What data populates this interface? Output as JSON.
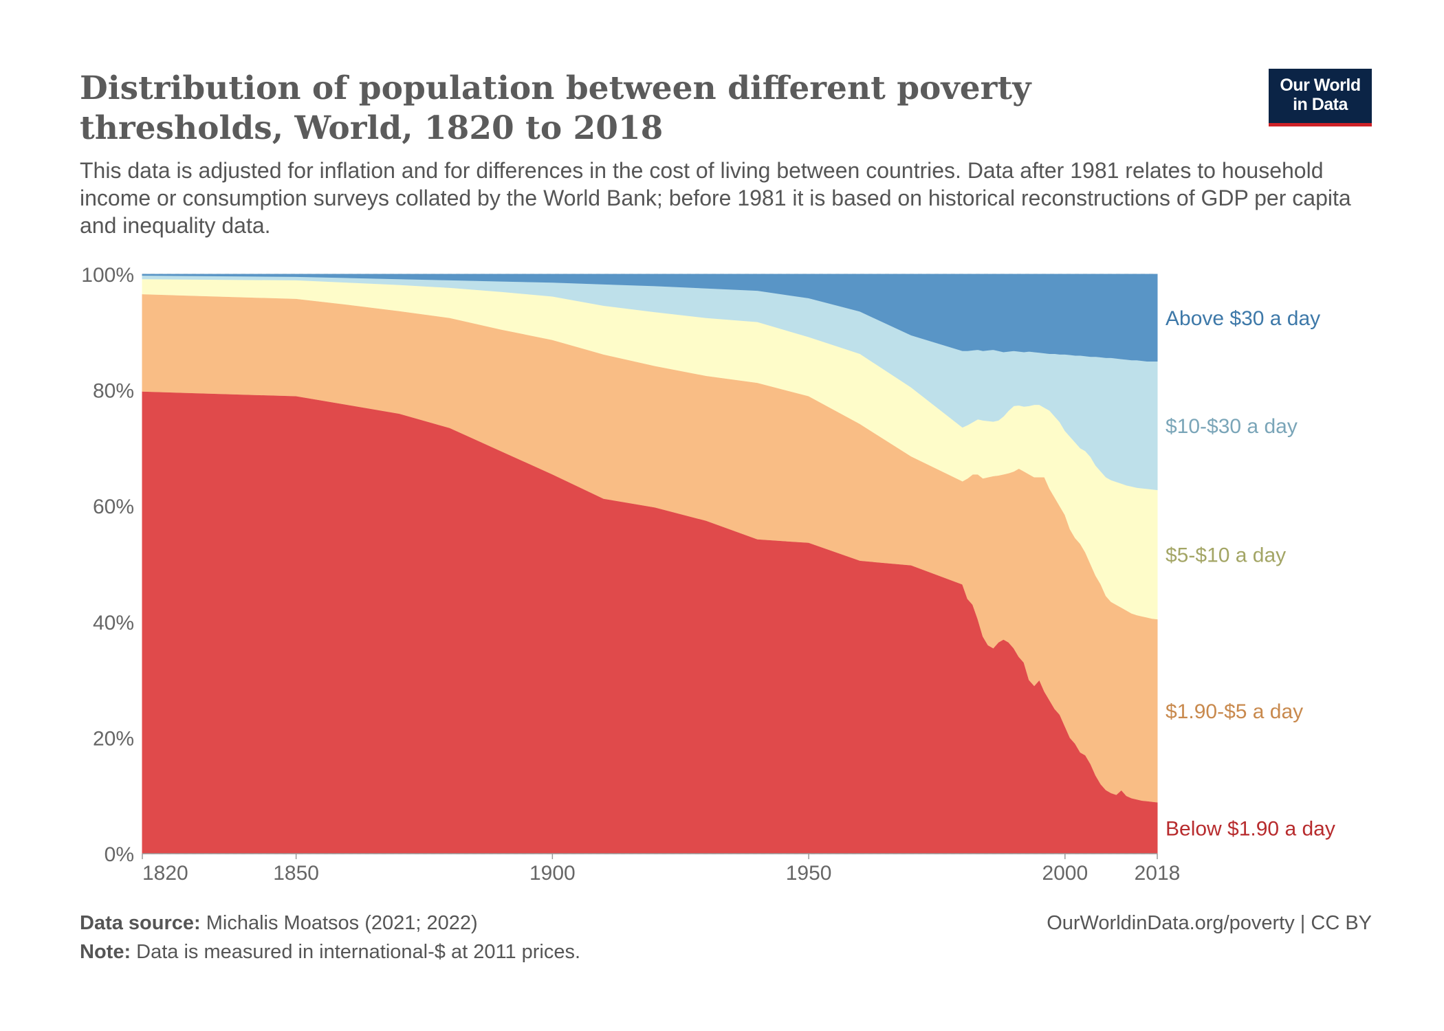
{
  "header": {
    "title": "Distribution of population between different poverty thresholds, World, 1820 to 2018",
    "subtitle": "This data is adjusted for inflation and for differences in the cost of living between countries. Data after 1981 relates to household income or consumption surveys collated by the World Bank; before 1981 it is based on historical reconstructions of GDP per capita and inequality data."
  },
  "logo": {
    "line1": "Our World",
    "line2": "in Data"
  },
  "footer": {
    "source_label": "Data source:",
    "source_text": "Michalis Moatsos (2021; 2022)",
    "note_label": "Note:",
    "note_text": "Data is measured in international-$ at 2011 prices.",
    "credit": "OurWorldinData.org/poverty | CC BY"
  },
  "chart_data": {
    "type": "area",
    "stacked": true,
    "title": "Distribution of population between different poverty thresholds, World, 1820 to 2018",
    "xlabel": "",
    "ylabel": "",
    "xlim": [
      1820,
      2018
    ],
    "ylim": [
      0,
      100
    ],
    "y_ticks": [
      "0%",
      "20%",
      "40%",
      "60%",
      "80%",
      "100%"
    ],
    "x_ticks": [
      "1820",
      "1850",
      "1900",
      "1950",
      "2000",
      "2018"
    ],
    "x_tick_values": [
      1820,
      1850,
      1900,
      1950,
      2000,
      2018
    ],
    "grid": true,
    "legend_position": "right-inline",
    "x": [
      1820,
      1850,
      1860,
      1870,
      1880,
      1890,
      1900,
      1910,
      1920,
      1930,
      1940,
      1950,
      1960,
      1970,
      1980,
      1981,
      1982,
      1983,
      1984,
      1985,
      1986,
      1987,
      1988,
      1989,
      1990,
      1991,
      1992,
      1993,
      1994,
      1995,
      1996,
      1997,
      1998,
      1999,
      2000,
      2001,
      2002,
      2003,
      2004,
      2005,
      2006,
      2007,
      2008,
      2009,
      2010,
      2011,
      2012,
      2013,
      2014,
      2015,
      2016,
      2017,
      2018
    ],
    "series": [
      {
        "name": "Below $1.90 a day",
        "color": "#e04a4b",
        "label_color": "#b72b2d",
        "cumulative_top": [
          79.8,
          79.0,
          77.5,
          76.0,
          73.5,
          69.5,
          65.5,
          61.3,
          59.8,
          57.5,
          54.3,
          53.7,
          50.6,
          49.8,
          46.5,
          44.0,
          43.0,
          40.5,
          37.5,
          36.0,
          35.5,
          36.5,
          37.0,
          36.5,
          35.5,
          34.0,
          33.0,
          30.0,
          29.0,
          30.0,
          28.0,
          26.5,
          25.0,
          24.0,
          22.0,
          20.0,
          19.0,
          17.5,
          17.0,
          15.5,
          13.5,
          12.0,
          11.0,
          10.5,
          10.2,
          11.0,
          10.0,
          9.6,
          9.4,
          9.2,
          9.1,
          9.0,
          8.9
        ],
        "values": [
          79.8,
          79.0,
          77.5,
          76.0,
          73.5,
          69.5,
          65.5,
          61.3,
          59.8,
          57.5,
          54.3,
          53.7,
          50.6,
          49.8,
          46.5,
          44.0,
          43.0,
          40.5,
          37.5,
          36.0,
          35.5,
          36.5,
          37.0,
          36.5,
          35.5,
          34.0,
          33.0,
          30.0,
          29.0,
          30.0,
          28.0,
          26.5,
          25.0,
          24.0,
          22.0,
          20.0,
          19.0,
          17.5,
          17.0,
          15.5,
          13.5,
          12.0,
          11.0,
          10.5,
          10.2,
          11.0,
          10.0,
          9.6,
          9.4,
          9.2,
          9.1,
          9.0,
          8.9
        ]
      },
      {
        "name": "$1.90-$5 a day",
        "color": "#f9bd85",
        "label_color": "#c8894d",
        "cumulative_top": [
          96.6,
          95.8,
          94.8,
          93.7,
          92.5,
          90.5,
          88.7,
          86.2,
          84.2,
          82.5,
          81.3,
          79.0,
          74.2,
          68.6,
          64.3,
          64.8,
          65.5,
          65.5,
          64.8,
          65.0,
          65.2,
          65.3,
          65.5,
          65.7,
          66.0,
          66.5,
          66.0,
          65.5,
          65.0,
          65.0,
          65.0,
          63.0,
          61.5,
          60.0,
          58.5,
          56.0,
          54.5,
          53.5,
          52.0,
          50.0,
          48.0,
          46.5,
          44.5,
          43.5,
          43.0,
          42.5,
          42.0,
          41.5,
          41.2,
          41.0,
          40.8,
          40.6,
          40.5
        ],
        "values": [
          16.8,
          16.8,
          17.3,
          17.7,
          19.0,
          21.0,
          23.2,
          24.9,
          24.4,
          25.0,
          27.0,
          25.3,
          23.6,
          18.8,
          17.8,
          20.8,
          22.5,
          25.0,
          27.3,
          29.0,
          29.7,
          28.8,
          28.5,
          29.2,
          30.5,
          32.5,
          33.0,
          35.5,
          36.0,
          35.0,
          37.0,
          36.5,
          36.5,
          36.0,
          36.5,
          36.0,
          35.5,
          36.0,
          35.0,
          34.5,
          34.5,
          34.5,
          33.5,
          33.0,
          32.8,
          31.5,
          32.0,
          31.9,
          31.8,
          31.8,
          31.7,
          31.6,
          31.6
        ]
      },
      {
        "name": "$5-$10 a day",
        "color": "#fefcc9",
        "label_color": "#a3a565",
        "cumulative_top": [
          99.2,
          99.0,
          98.6,
          98.2,
          97.7,
          97.0,
          96.2,
          94.6,
          93.5,
          92.5,
          91.8,
          89.2,
          86.3,
          80.5,
          73.6,
          74.0,
          74.5,
          75.0,
          74.8,
          74.7,
          74.6,
          74.8,
          75.5,
          76.5,
          77.3,
          77.4,
          77.2,
          77.3,
          77.5,
          77.5,
          77.0,
          76.5,
          75.5,
          74.5,
          73.0,
          72.0,
          71.0,
          70.0,
          69.5,
          68.5,
          67.0,
          66.0,
          65.0,
          64.5,
          64.2,
          63.9,
          63.6,
          63.4,
          63.2,
          63.1,
          63.0,
          62.9,
          62.8
        ],
        "values": [
          2.6,
          3.2,
          3.8,
          4.5,
          5.2,
          6.5,
          7.5,
          8.4,
          9.3,
          10.0,
          10.5,
          10.2,
          12.1,
          11.9,
          9.3,
          9.2,
          9.0,
          9.5,
          10.0,
          9.7,
          9.4,
          9.5,
          10.0,
          10.8,
          11.3,
          10.9,
          11.2,
          11.8,
          12.5,
          12.5,
          12.0,
          13.5,
          14.0,
          14.5,
          14.5,
          16.0,
          16.5,
          16.5,
          17.5,
          18.5,
          19.0,
          19.5,
          20.5,
          21.0,
          21.2,
          21.4,
          21.6,
          21.9,
          22.0,
          22.1,
          22.2,
          22.3,
          22.3
        ]
      },
      {
        "name": "$10-$30 a day",
        "color": "#bee0ea",
        "label_color": "#7aa5b8",
        "cumulative_top": [
          99.8,
          99.6,
          99.4,
          99.2,
          99.0,
          98.8,
          98.6,
          98.3,
          98.0,
          97.6,
          97.2,
          95.9,
          93.6,
          89.5,
          86.8,
          86.8,
          86.9,
          87.0,
          86.8,
          86.9,
          87.0,
          86.8,
          86.6,
          86.7,
          86.8,
          86.7,
          86.6,
          86.7,
          86.6,
          86.5,
          86.4,
          86.3,
          86.3,
          86.2,
          86.2,
          86.1,
          86.0,
          86.0,
          85.9,
          85.8,
          85.8,
          85.7,
          85.6,
          85.6,
          85.5,
          85.4,
          85.3,
          85.2,
          85.2,
          85.1,
          85.0,
          85.0,
          85.0
        ],
        "values": [
          0.6,
          0.6,
          0.8,
          1.0,
          1.3,
          1.8,
          2.4,
          3.7,
          4.5,
          5.1,
          5.4,
          6.7,
          7.3,
          9.0,
          13.2,
          12.8,
          12.4,
          12.0,
          12.0,
          12.2,
          12.4,
          12.0,
          11.1,
          10.2,
          9.5,
          9.3,
          9.4,
          9.4,
          9.1,
          9.0,
          9.4,
          9.8,
          10.8,
          11.7,
          13.2,
          14.1,
          15.0,
          16.0,
          16.4,
          17.3,
          18.8,
          19.7,
          20.6,
          21.1,
          21.3,
          21.5,
          21.7,
          21.8,
          22.0,
          22.0,
          22.0,
          22.1,
          22.2
        ]
      },
      {
        "name": "Above $30 a day",
        "color": "#5995c6",
        "label_color": "#3d78a8",
        "cumulative_top": [
          100,
          100,
          100,
          100,
          100,
          100,
          100,
          100,
          100,
          100,
          100,
          100,
          100,
          100,
          100,
          100,
          100,
          100,
          100,
          100,
          100,
          100,
          100,
          100,
          100,
          100,
          100,
          100,
          100,
          100,
          100,
          100,
          100,
          100,
          100,
          100,
          100,
          100,
          100,
          100,
          100,
          100,
          100,
          100,
          100,
          100,
          100,
          100,
          100,
          100,
          100,
          100,
          100
        ],
        "values": [
          0.2,
          0.4,
          0.6,
          0.8,
          1.0,
          1.2,
          1.4,
          1.7,
          2.0,
          2.4,
          2.8,
          4.1,
          6.4,
          10.5,
          13.2,
          13.2,
          13.1,
          13.0,
          13.2,
          13.1,
          13.0,
          13.2,
          13.4,
          13.3,
          13.2,
          13.3,
          13.4,
          13.3,
          13.4,
          13.5,
          13.6,
          13.7,
          13.7,
          13.8,
          13.8,
          13.9,
          14.0,
          14.0,
          14.1,
          14.2,
          14.2,
          14.3,
          14.4,
          14.4,
          14.5,
          14.6,
          14.7,
          14.8,
          14.8,
          14.9,
          15.0,
          15.0,
          15.0
        ]
      }
    ]
  }
}
